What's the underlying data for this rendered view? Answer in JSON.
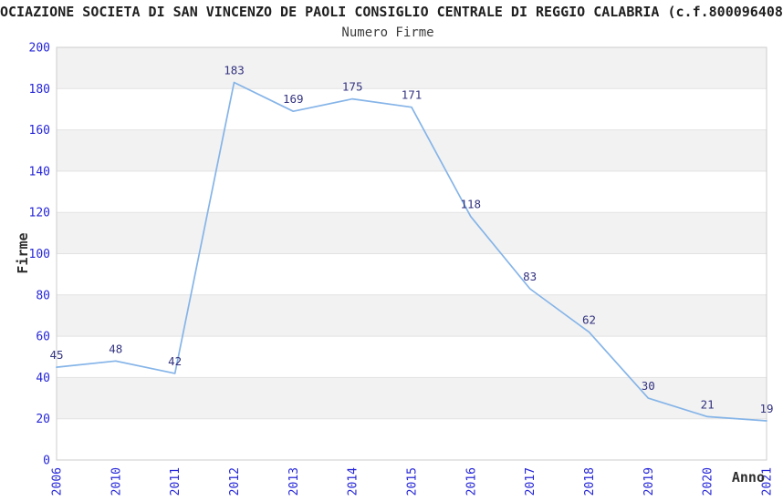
{
  "title": "OCIAZIONE SOCIETA DI SAN VINCENZO DE PAOLI CONSIGLIO CENTRALE DI REGGIO CALABRIA (c.f.800096408",
  "subtitle": "Numero Firme",
  "chart_data": {
    "type": "line",
    "title": "Numero Firme",
    "categories": [
      "2006",
      "2010",
      "2011",
      "2012",
      "2013",
      "2014",
      "2015",
      "2016",
      "2017",
      "2018",
      "2019",
      "2020",
      "2021"
    ],
    "values": [
      45,
      48,
      42,
      183,
      169,
      175,
      171,
      118,
      83,
      62,
      30,
      21,
      19
    ],
    "xlabel": "Anno",
    "ylabel": "Firme",
    "ylim": [
      0,
      200
    ],
    "yticks": [
      0,
      20,
      40,
      60,
      80,
      100,
      120,
      140,
      160,
      180,
      200
    ],
    "grid": "alternating-horizontal-bands",
    "legend": "none",
    "colors": {
      "line": "#85b4e8",
      "data_label": "#333380",
      "tick_label": "#2626d8",
      "band": "#f2f2f2",
      "gridline": "#e2e2e2",
      "border": "#cccccc"
    }
  }
}
